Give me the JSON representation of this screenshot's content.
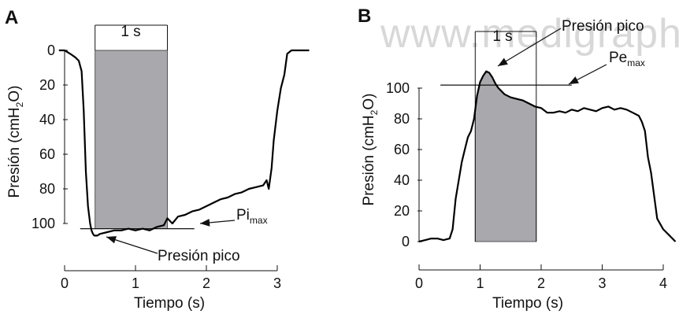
{
  "watermark": "www.medigraphic.org",
  "chart_data": [
    {
      "panel": "A",
      "type": "line",
      "xlabel": "Tiempo (s)",
      "ylabel": {
        "main": "Presión  (cmH",
        "sub": "2",
        "end": "O)"
      },
      "xlim": [
        -0.1,
        3.6
      ],
      "ylim": [
        0,
        110
      ],
      "y_inverted": true,
      "xticks": [
        0,
        1,
        2,
        3
      ],
      "yticks": [
        0,
        20,
        40,
        60,
        80,
        100
      ],
      "shaded_interval": {
        "x": [
          0.43,
          1.45
        ],
        "y": [
          0,
          103
        ],
        "label": "1 s"
      },
      "reference_line": {
        "y": 103,
        "x": [
          0.22,
          1.83
        ]
      },
      "annotations": [
        {
          "text": "Pi",
          "sub": "max"
        },
        {
          "text": "Presión pico"
        }
      ],
      "series": [
        {
          "x": [
            -0.08,
            0.0,
            0.08,
            0.15,
            0.2,
            0.24,
            0.27,
            0.3,
            0.33,
            0.36,
            0.38,
            0.4,
            0.42,
            0.46,
            0.5,
            0.6,
            0.7,
            0.8,
            0.9,
            1.0,
            1.1,
            1.2,
            1.3,
            1.4,
            1.45,
            1.52,
            1.6,
            1.7,
            1.8,
            1.9,
            2.0,
            2.1,
            2.2,
            2.3,
            2.4,
            2.5,
            2.6,
            2.7,
            2.8,
            2.85,
            2.88,
            2.92,
            2.95,
            3.0,
            3.05,
            3.1,
            3.14,
            3.2,
            3.3,
            3.45
          ],
          "y": [
            0,
            0,
            2,
            4,
            6,
            12,
            35,
            70,
            90,
            100,
            104,
            106,
            107,
            107,
            106,
            105,
            104,
            104,
            103,
            104,
            103,
            104,
            102,
            101,
            97,
            100,
            96,
            95,
            93,
            92,
            90,
            88,
            86,
            85,
            83,
            82,
            80,
            79,
            78,
            75,
            80,
            68,
            52,
            35,
            22,
            14,
            2,
            0,
            0,
            0
          ]
        }
      ]
    },
    {
      "panel": "B",
      "type": "line",
      "xlabel": "Tiempo (s)",
      "ylabel": {
        "main": "Presión  (cmH",
        "sub": "2",
        "end": "O)"
      },
      "xlim": [
        0,
        4.2
      ],
      "ylim": [
        0,
        115
      ],
      "xticks": [
        0,
        1,
        2,
        3,
        4
      ],
      "yticks": [
        0,
        20,
        40,
        60,
        80,
        100
      ],
      "shaded_interval": {
        "x": [
          0.92,
          1.92
        ],
        "label": "1 s"
      },
      "reference_line": {
        "y": 102,
        "x": [
          0.35,
          2.5
        ]
      },
      "annotations": [
        {
          "text": "Presión pico"
        },
        {
          "text": "Pe",
          "sub": "max"
        }
      ],
      "series": [
        {
          "x": [
            0.0,
            0.1,
            0.2,
            0.3,
            0.4,
            0.5,
            0.55,
            0.6,
            0.65,
            0.7,
            0.75,
            0.8,
            0.85,
            0.9,
            0.95,
            1.0,
            1.05,
            1.1,
            1.15,
            1.2,
            1.25,
            1.3,
            1.4,
            1.5,
            1.6,
            1.7,
            1.8,
            1.9,
            2.0,
            2.1,
            2.2,
            2.3,
            2.4,
            2.5,
            2.6,
            2.7,
            2.8,
            2.9,
            3.0,
            3.1,
            3.2,
            3.3,
            3.4,
            3.5,
            3.6,
            3.65,
            3.7,
            3.75,
            3.8,
            3.85,
            3.9,
            4.0,
            4.1,
            4.2
          ],
          "y": [
            0,
            1,
            2,
            2,
            1,
            2,
            8,
            28,
            40,
            52,
            60,
            68,
            72,
            80,
            95,
            104,
            108,
            111,
            110,
            107,
            103,
            100,
            96,
            94,
            93,
            92,
            90,
            88,
            87,
            84,
            84,
            85,
            84,
            86,
            85,
            87,
            86,
            85,
            87,
            88,
            86,
            87,
            86,
            84,
            82,
            78,
            72,
            55,
            45,
            30,
            15,
            8,
            4,
            0
          ]
        }
      ]
    }
  ]
}
